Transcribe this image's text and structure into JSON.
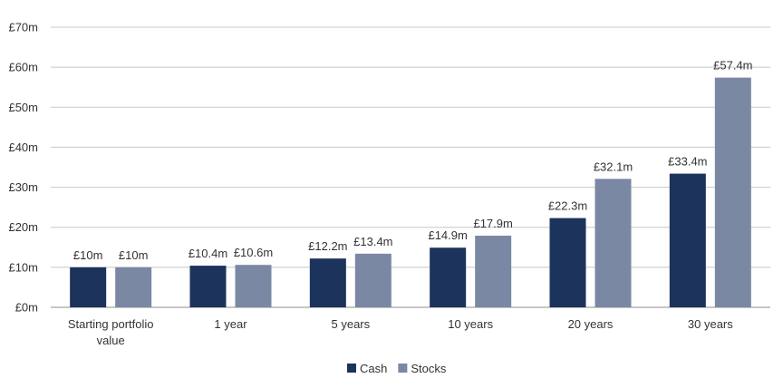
{
  "chart_data": {
    "type": "bar",
    "title": "",
    "xlabel": "",
    "ylabel": "",
    "categories": [
      [
        "Starting portfolio",
        "value"
      ],
      [
        "1 year"
      ],
      [
        "5 years"
      ],
      [
        "10 years"
      ],
      [
        "20 years"
      ],
      [
        "30 years"
      ]
    ],
    "series": [
      {
        "name": "Cash",
        "color": "#1c335c",
        "values": [
          10,
          10.4,
          12.2,
          14.9,
          22.3,
          33.4
        ],
        "labels": [
          "£10m",
          "£10.4m",
          "£12.2m",
          "£14.9m",
          "£22.3m",
          "£33.4m"
        ]
      },
      {
        "name": "Stocks",
        "color": "#7a88a3",
        "values": [
          10,
          10.6,
          13.4,
          17.9,
          32.1,
          57.4
        ],
        "labels": [
          "£10m",
          "£10.6m",
          "£13.4m",
          "£17.9m",
          "£32.1m",
          "£57.4m"
        ]
      }
    ],
    "ylim": [
      0,
      70
    ],
    "yticks": [
      0,
      10,
      20,
      30,
      40,
      50,
      60,
      70
    ],
    "ytick_labels": [
      "£0m",
      "£10m",
      "£20m",
      "£30m",
      "£40m",
      "£50m",
      "£60m",
      "£70m"
    ],
    "grid": true,
    "legend_position": "bottom-center"
  }
}
